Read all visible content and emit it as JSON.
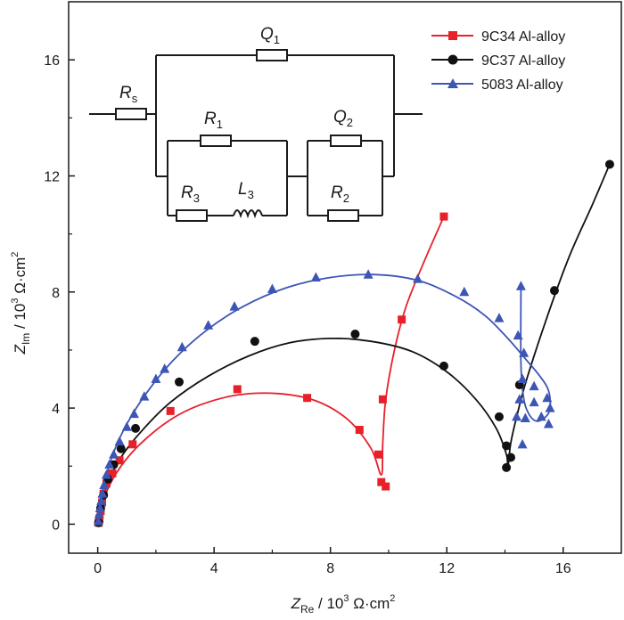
{
  "chart_data": {
    "type": "scatter",
    "title": "",
    "xlabel": {
      "main": "Z",
      "sub": "Re",
      "unit": " / 10",
      "exp": "3",
      "unit2": " Ω·cm",
      "exp2": "2"
    },
    "ylabel": {
      "main": "Z",
      "sub": "Im",
      "unit": " / 10",
      "exp": "3",
      "unit2": " Ω·cm",
      "exp2": "2"
    },
    "xlim": [
      -1,
      18
    ],
    "ylim": [
      -1,
      18
    ],
    "xticks": [
      0,
      4,
      8,
      12,
      16
    ],
    "yticks": [
      0,
      4,
      8,
      12,
      16
    ],
    "grid": false,
    "legend_position": "top-right",
    "series": [
      {
        "name": "9C34 Al-alloy",
        "color": "#e8202a",
        "marker": "square",
        "x": [
          0.03,
          0.06,
          0.1,
          0.15,
          0.2,
          0.3,
          0.5,
          0.75,
          1.2,
          2.5,
          4.8,
          7.2,
          9.0,
          9.65,
          9.75,
          9.9,
          9.8,
          10.45,
          11.9
        ],
        "y": [
          0.05,
          0.2,
          0.45,
          0.75,
          1.05,
          1.4,
          1.75,
          2.2,
          2.75,
          3.9,
          4.65,
          4.35,
          3.25,
          2.4,
          1.45,
          1.3,
          4.3,
          7.05,
          10.6
        ],
        "fit": [
          [
            0,
            0
          ],
          [
            0.3,
            1.1
          ],
          [
            0.8,
            2.0
          ],
          [
            1.5,
            2.8
          ],
          [
            2.5,
            3.6
          ],
          [
            3.5,
            4.1
          ],
          [
            4.8,
            4.45
          ],
          [
            6.2,
            4.5
          ],
          [
            7.5,
            4.25
          ],
          [
            8.6,
            3.6
          ],
          [
            9.4,
            2.6
          ],
          [
            9.75,
            1.7
          ],
          [
            9.8,
            2.8
          ],
          [
            9.9,
            4.3
          ],
          [
            10.2,
            6.0
          ],
          [
            10.6,
            7.5
          ],
          [
            11.2,
            9.0
          ],
          [
            11.9,
            10.6
          ]
        ]
      },
      {
        "name": "9C37 Al-alloy",
        "color": "#111111",
        "marker": "circle",
        "x": [
          0.03,
          0.1,
          0.2,
          0.35,
          0.55,
          0.8,
          1.3,
          2.8,
          5.4,
          8.85,
          11.9,
          13.8,
          14.05,
          14.05,
          14.2,
          14.5,
          15.7,
          17.6
        ],
        "y": [
          0.05,
          0.55,
          1.0,
          1.55,
          2.05,
          2.6,
          3.3,
          4.9,
          6.3,
          6.55,
          5.45,
          3.7,
          2.7,
          1.95,
          2.3,
          4.8,
          8.05,
          12.4
        ],
        "fit": [
          [
            0,
            0
          ],
          [
            0.3,
            1.3
          ],
          [
            0.8,
            2.3
          ],
          [
            1.5,
            3.2
          ],
          [
            2.5,
            4.2
          ],
          [
            3.8,
            5.1
          ],
          [
            5.2,
            5.8
          ],
          [
            6.6,
            6.25
          ],
          [
            8.0,
            6.4
          ],
          [
            9.4,
            6.3
          ],
          [
            10.8,
            5.95
          ],
          [
            12.0,
            5.25
          ],
          [
            13.0,
            4.3
          ],
          [
            13.7,
            3.3
          ],
          [
            14.05,
            2.4
          ],
          [
            14.1,
            1.95
          ],
          [
            14.2,
            2.8
          ],
          [
            14.45,
            3.9
          ],
          [
            14.75,
            5.0
          ],
          [
            15.4,
            7.0
          ],
          [
            16.2,
            9.2
          ],
          [
            17.0,
            11.0
          ],
          [
            17.6,
            12.4
          ]
        ]
      },
      {
        "name": "5083 Al-alloy",
        "color": "#3d55b5",
        "marker": "triangle",
        "x": [
          0.02,
          0.05,
          0.08,
          0.12,
          0.16,
          0.22,
          0.3,
          0.4,
          0.55,
          0.75,
          1.0,
          1.25,
          1.6,
          2.0,
          2.3,
          2.9,
          3.8,
          4.7,
          6.0,
          7.5,
          9.3,
          11.0,
          12.6,
          13.8,
          14.45,
          14.6,
          14.5,
          14.4,
          14.6,
          14.7,
          15.0,
          15.25,
          15.5,
          15.55,
          15.45,
          15.0,
          14.65,
          14.55
        ],
        "y": [
          0.1,
          0.35,
          0.55,
          0.8,
          1.05,
          1.35,
          1.7,
          2.05,
          2.4,
          2.85,
          3.35,
          3.8,
          4.4,
          5.0,
          5.35,
          6.1,
          6.85,
          7.5,
          8.1,
          8.5,
          8.6,
          8.45,
          8.0,
          7.1,
          6.5,
          5.0,
          4.3,
          3.7,
          2.75,
          3.65,
          4.2,
          3.7,
          3.45,
          4.0,
          4.35,
          4.75,
          5.9,
          8.2
        ],
        "fit": [
          [
            0,
            0
          ],
          [
            0.2,
            1.25
          ],
          [
            0.5,
            2.35
          ],
          [
            1.0,
            3.45
          ],
          [
            1.7,
            4.55
          ],
          [
            2.6,
            5.65
          ],
          [
            3.7,
            6.65
          ],
          [
            5.0,
            7.5
          ],
          [
            6.5,
            8.15
          ],
          [
            8.0,
            8.5
          ],
          [
            9.5,
            8.6
          ],
          [
            11.0,
            8.4
          ],
          [
            12.3,
            7.85
          ],
          [
            13.3,
            7.2
          ],
          [
            14.1,
            6.4
          ],
          [
            14.7,
            5.7
          ],
          [
            15.2,
            5.1
          ],
          [
            15.5,
            4.6
          ],
          [
            15.55,
            4.0
          ],
          [
            15.4,
            3.7
          ],
          [
            15.1,
            3.55
          ],
          [
            14.85,
            3.75
          ],
          [
            14.65,
            4.3
          ],
          [
            14.55,
            5.5
          ],
          [
            14.55,
            8.2
          ]
        ]
      }
    ]
  },
  "circuit": {
    "labels": {
      "Rs": {
        "main": "R",
        "sub": "s"
      },
      "Q1": {
        "main": "Q",
        "sub": "1"
      },
      "R1": {
        "main": "R",
        "sub": "1"
      },
      "Q2": {
        "main": "Q",
        "sub": "2"
      },
      "R3": {
        "main": "R",
        "sub": "3"
      },
      "L3": {
        "main": "L",
        "sub": "3"
      },
      "R2": {
        "main": "R",
        "sub": "2"
      }
    }
  }
}
